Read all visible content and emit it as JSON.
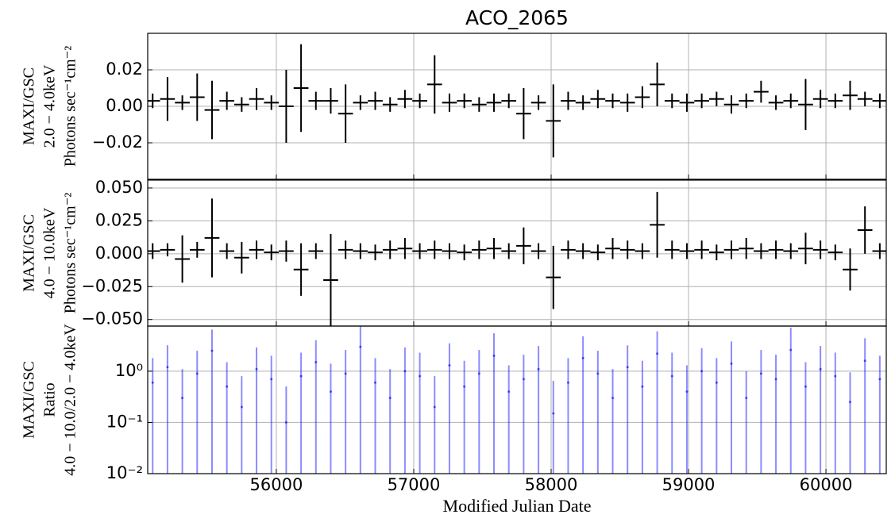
{
  "chart_data": {
    "type": "errorbar",
    "title": "ACO_2065",
    "xlabel": "Modified Julian Date",
    "xlim": [
      55064,
      60439
    ],
    "xticks": [
      56000,
      57000,
      58000,
      59000,
      60000
    ],
    "grid": true,
    "x": [
      55100,
      55208,
      55316,
      55424,
      55532,
      55640,
      55748,
      55856,
      55964,
      56072,
      56180,
      56288,
      56396,
      56504,
      56612,
      56720,
      56828,
      56936,
      57044,
      57152,
      57260,
      57368,
      57476,
      57584,
      57692,
      57800,
      57908,
      58016,
      58124,
      58232,
      58340,
      58448,
      58556,
      58664,
      58772,
      58880,
      58988,
      59096,
      59204,
      59312,
      59420,
      59528,
      59636,
      59744,
      59852,
      59960,
      60068,
      60176,
      60284,
      60392
    ],
    "panels": [
      {
        "ylabel": [
          "MAXI/GSC",
          "2.0 − 4.0keV",
          "Photons sec⁻¹cm⁻²"
        ],
        "scale": "linear",
        "color": "#000000",
        "ylim": [
          -0.04,
          0.04
        ],
        "yticks": [
          {
            "value": -0.02,
            "label": "−0.02"
          },
          {
            "value": 0,
            "label": "0.00"
          },
          0.02
        ],
        "values": [
          0.003,
          0.004,
          0.002,
          0.005,
          -0.002,
          0.003,
          0.001,
          0.004,
          0.002,
          0.0,
          0.01,
          0.003,
          0.003,
          -0.004,
          0.002,
          0.003,
          0.001,
          0.004,
          0.003,
          0.012,
          0.002,
          0.003,
          0.001,
          0.002,
          0.003,
          -0.004,
          0.002,
          -0.008,
          0.003,
          0.002,
          0.004,
          0.003,
          0.002,
          0.005,
          0.012,
          0.003,
          0.002,
          0.003,
          0.004,
          0.001,
          0.003,
          0.008,
          0.002,
          0.003,
          0.001,
          0.004,
          0.003,
          0.006,
          0.004,
          0.003
        ],
        "errors": [
          0.004,
          0.012,
          0.004,
          0.013,
          0.016,
          0.005,
          0.004,
          0.006,
          0.004,
          0.02,
          0.024,
          0.005,
          0.007,
          0.016,
          0.004,
          0.005,
          0.004,
          0.005,
          0.004,
          0.016,
          0.005,
          0.004,
          0.004,
          0.005,
          0.004,
          0.014,
          0.004,
          0.02,
          0.005,
          0.004,
          0.005,
          0.004,
          0.005,
          0.006,
          0.012,
          0.004,
          0.005,
          0.004,
          0.004,
          0.005,
          0.004,
          0.006,
          0.004,
          0.004,
          0.014,
          0.005,
          0.004,
          0.008,
          0.004,
          0.004
        ]
      },
      {
        "ylabel": [
          "MAXI/GSC",
          "4.0 − 10.0keV",
          "Photons sec⁻¹cm⁻²"
        ],
        "scale": "linear",
        "color": "#000000",
        "ylim": [
          -0.055,
          0.056
        ],
        "yticks": [
          {
            "value": -0.05,
            "label": "−0.050"
          },
          {
            "value": -0.025,
            "label": "−0.025"
          },
          {
            "value": 0,
            "label": "0.000"
          },
          0.025,
          {
            "value": 0.05,
            "label": "0.050"
          }
        ],
        "values": [
          0.002,
          0.003,
          -0.004,
          0.003,
          0.012,
          0.002,
          -0.003,
          0.003,
          0.001,
          0.002,
          -0.012,
          0.002,
          -0.02,
          0.003,
          0.002,
          0.001,
          0.003,
          0.004,
          0.002,
          0.003,
          0.002,
          0.001,
          0.003,
          0.004,
          0.002,
          0.006,
          0.002,
          -0.018,
          0.003,
          0.002,
          0.001,
          0.004,
          0.003,
          0.002,
          0.022,
          0.003,
          0.002,
          0.003,
          0.001,
          0.003,
          0.004,
          0.002,
          0.003,
          0.002,
          0.004,
          0.003,
          0.001,
          -0.012,
          0.018,
          0.002
        ],
        "errors": [
          0.006,
          0.005,
          0.018,
          0.006,
          0.03,
          0.006,
          0.012,
          0.007,
          0.006,
          0.008,
          0.02,
          0.006,
          0.035,
          0.007,
          0.006,
          0.006,
          0.007,
          0.008,
          0.006,
          0.007,
          0.006,
          0.006,
          0.007,
          0.008,
          0.006,
          0.014,
          0.006,
          0.024,
          0.007,
          0.006,
          0.006,
          0.008,
          0.007,
          0.006,
          0.025,
          0.007,
          0.006,
          0.007,
          0.006,
          0.007,
          0.008,
          0.006,
          0.007,
          0.006,
          0.012,
          0.007,
          0.006,
          0.016,
          0.018,
          0.006
        ]
      },
      {
        "ylabel": [
          "MAXI/GSC",
          "Ratio",
          "4.0 − 10.0/2.0 − 4.0keV"
        ],
        "scale": "log",
        "color": "#0000ff",
        "ylim": [
          0.01,
          7.6
        ],
        "yticks": [
          {
            "value": 0.01,
            "label": "10⁻²"
          },
          {
            "value": 0.1,
            "label": "10⁻¹"
          },
          {
            "value": 1,
            "label": "10⁰"
          }
        ],
        "values": [
          0.6,
          1.2,
          0.3,
          0.9,
          2.5,
          0.5,
          0.2,
          1.1,
          0.7,
          0.1,
          0.8,
          1.5,
          0.4,
          0.9,
          3.0,
          0.6,
          0.3,
          1.0,
          0.8,
          0.2,
          1.3,
          0.5,
          0.9,
          2.0,
          0.4,
          0.7,
          1.1,
          0.15,
          0.6,
          1.8,
          0.9,
          0.3,
          1.2,
          0.5,
          2.2,
          0.8,
          0.4,
          1.0,
          0.6,
          1.4,
          0.3,
          0.9,
          0.7,
          2.6,
          0.5,
          1.1,
          0.8,
          0.25,
          1.6,
          0.7
        ],
        "errors": [
          1.2,
          2.0,
          0.8,
          1.6,
          4.0,
          1.0,
          0.6,
          1.8,
          1.3,
          0.4,
          1.5,
          2.5,
          1.0,
          1.7,
          5.0,
          1.2,
          0.8,
          1.9,
          1.5,
          0.6,
          2.2,
          1.1,
          1.7,
          3.5,
          0.9,
          1.4,
          2.0,
          0.5,
          1.2,
          3.0,
          1.6,
          0.8,
          2.0,
          1.1,
          3.8,
          1.5,
          0.9,
          1.8,
          1.2,
          2.4,
          0.7,
          1.7,
          1.4,
          4.5,
          1.0,
          2.0,
          1.5,
          0.7,
          2.8,
          1.3
        ]
      }
    ]
  }
}
